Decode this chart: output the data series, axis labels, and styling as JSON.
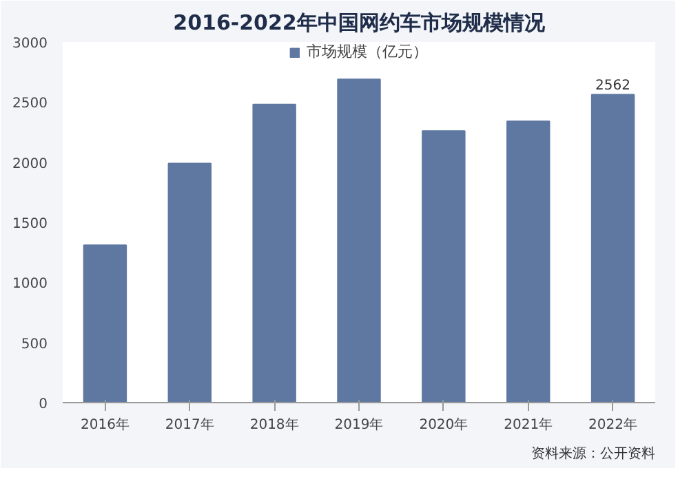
{
  "chart_data": {
    "type": "bar",
    "title": "2016-2022年中国网约车市场规模情况",
    "categories": [
      "2016年",
      "2017年",
      "2018年",
      "2019年",
      "2020年",
      "2021年",
      "2022年"
    ],
    "series": [
      {
        "name": "市场规模（亿元）",
        "color": "#5f78a2",
        "values": [
          1310,
          1990,
          2480,
          2690,
          2260,
          2340,
          2562
        ],
        "value_labels": [
          null,
          null,
          null,
          null,
          null,
          null,
          "2562"
        ]
      }
    ],
    "ylim": [
      0,
      3000
    ],
    "yticks": [
      0,
      500,
      1000,
      1500,
      2000,
      2500,
      3000
    ],
    "grid": false,
    "legend": "top",
    "annotations": [
      "资料来源：公开资料"
    ]
  }
}
